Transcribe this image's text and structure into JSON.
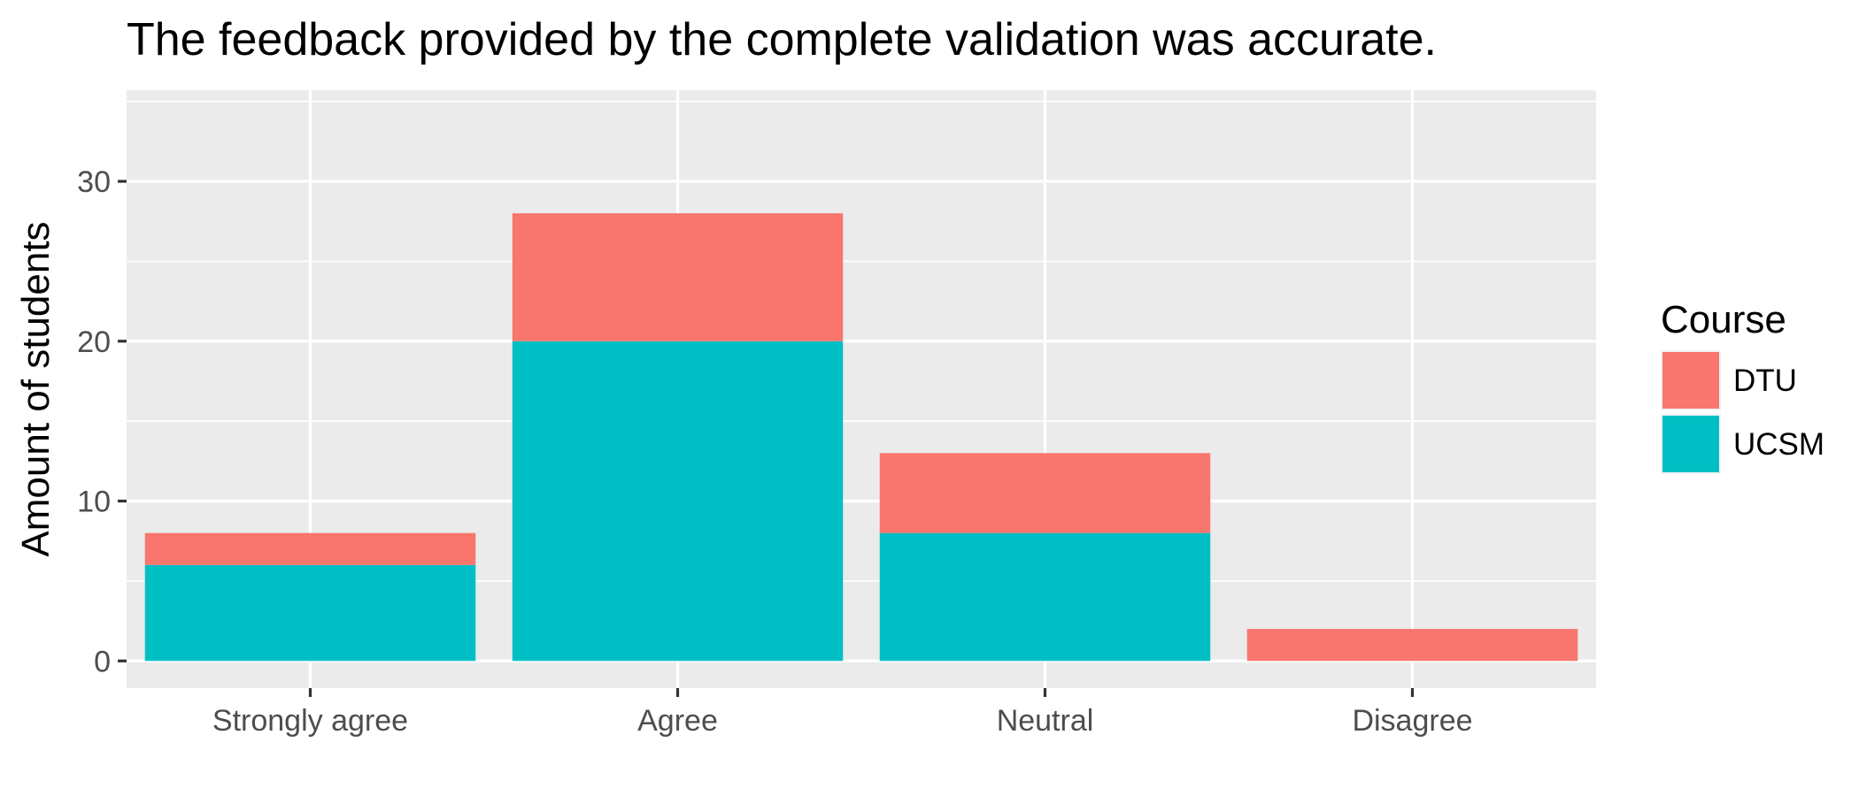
{
  "chart_data": {
    "type": "bar",
    "stacked": true,
    "title": "The feedback provided by the complete validation was accurate.",
    "xlabel": "",
    "ylabel": "Amount of students",
    "categories": [
      "Strongly agree",
      "Agree",
      "Neutral",
      "Disagree"
    ],
    "series": [
      {
        "name": "DTU",
        "values": [
          2,
          8,
          5,
          2
        ],
        "color": "#F8766D"
      },
      {
        "name": "UCSM",
        "values": [
          6,
          20,
          8,
          0
        ],
        "color": "#00BFC4"
      }
    ],
    "stack_order": [
      "UCSM",
      "DTU"
    ],
    "yticks": [
      0,
      10,
      20,
      30
    ],
    "ylim": [
      -1.7,
      35.7
    ],
    "grid": true,
    "panel_background": "#EBEBEB",
    "grid_color": "#FFFFFF",
    "tick_color": "#333333",
    "legend": {
      "title": "Course",
      "position": "right",
      "entries": [
        "DTU",
        "UCSM"
      ]
    }
  }
}
